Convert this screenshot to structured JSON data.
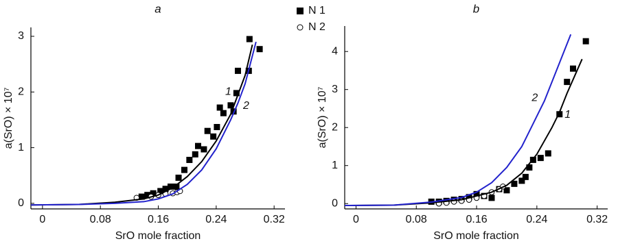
{
  "chart_data": [
    {
      "type": "scatter",
      "title": "a",
      "xlabel": "SrO mole fraction",
      "ylabel": "a(SrO) × 10⁷",
      "xlim": [
        -0.016,
        0.335
      ],
      "ylim": [
        -0.1,
        3.16
      ],
      "xticks": [
        0,
        0.08,
        0.16,
        0.24,
        0.32
      ],
      "yticks": [
        0,
        1,
        2,
        3
      ],
      "legend": "top-right",
      "series": [
        {
          "name": "N 1",
          "mark": "square",
          "color": "#000000",
          "x": [
            0.137,
            0.145,
            0.153,
            0.163,
            0.17,
            0.177,
            0.185,
            0.188,
            0.196,
            0.203,
            0.211,
            0.215,
            0.223,
            0.228,
            0.236,
            0.241,
            0.245,
            0.25,
            0.26,
            0.264,
            0.268,
            0.27,
            0.285,
            0.286,
            0.3
          ],
          "values": [
            0.12,
            0.15,
            0.18,
            0.22,
            0.26,
            0.3,
            0.3,
            0.46,
            0.6,
            0.78,
            0.88,
            1.03,
            0.97,
            1.3,
            1.2,
            1.37,
            1.72,
            1.62,
            1.76,
            1.65,
            1.98,
            2.38,
            2.38,
            2.95,
            2.77
          ]
        },
        {
          "name": "N 2",
          "mark": "circle",
          "color": "#000000",
          "x": [
            0.13,
            0.15,
            0.16,
            0.17,
            0.18,
            0.186,
            0.19
          ],
          "values": [
            0.1,
            0.12,
            0.15,
            0.17,
            0.18,
            0.2,
            0.22
          ]
        },
        {
          "name": "1",
          "mark": "line",
          "color": "#000000",
          "x": [
            -0.016,
            0.05,
            0.1,
            0.14,
            0.16,
            0.18,
            0.2,
            0.22,
            0.24,
            0.26,
            0.27,
            0.28,
            0.29
          ],
          "values": [
            -0.03,
            -0.02,
            0.02,
            0.08,
            0.15,
            0.28,
            0.48,
            0.75,
            1.12,
            1.6,
            1.95,
            2.3,
            2.85
          ]
        },
        {
          "name": "2",
          "mark": "line",
          "color": "#2222cc",
          "x": [
            -0.016,
            0.05,
            0.1,
            0.14,
            0.16,
            0.18,
            0.2,
            0.22,
            0.24,
            0.26,
            0.27,
            0.28,
            0.295
          ],
          "values": [
            -0.03,
            -0.02,
            0.0,
            0.03,
            0.08,
            0.17,
            0.34,
            0.6,
            0.98,
            1.5,
            1.8,
            2.15,
            2.9
          ]
        }
      ]
    },
    {
      "type": "scatter",
      "title": "b",
      "xlabel": "SrO mole fraction",
      "ylabel": "a(SrO) × 10⁷",
      "xlim": [
        -0.015,
        0.334
      ],
      "ylim": [
        -0.14,
        4.67
      ],
      "xticks": [
        0,
        0.08,
        0.16,
        0.24,
        0.32
      ],
      "yticks": [
        0,
        1,
        2,
        3,
        4
      ],
      "series": [
        {
          "mark": "square",
          "color": "#000000",
          "x": [
            0.1,
            0.11,
            0.12,
            0.13,
            0.14,
            0.15,
            0.16,
            0.17,
            0.18,
            0.19,
            0.2,
            0.21,
            0.22,
            0.225,
            0.23,
            0.235,
            0.245,
            0.255,
            0.27,
            0.28,
            0.288,
            0.305
          ],
          "values": [
            0.05,
            0.05,
            0.07,
            0.1,
            0.12,
            0.17,
            0.25,
            0.2,
            0.15,
            0.38,
            0.35,
            0.52,
            0.6,
            0.7,
            0.95,
            1.15,
            1.2,
            1.32,
            2.35,
            3.2,
            3.55,
            4.27
          ]
        },
        {
          "mark": "circle",
          "color": "#000000",
          "x": [
            0.11,
            0.12,
            0.13,
            0.14,
            0.15,
            0.16,
            0.17,
            0.18,
            0.19,
            0.195
          ],
          "values": [
            0.0,
            0.02,
            0.05,
            0.07,
            0.1,
            0.15,
            0.2,
            0.3,
            0.38,
            0.45
          ]
        },
        {
          "name": "1",
          "mark": "line",
          "color": "#000000",
          "x": [
            -0.015,
            0.05,
            0.1,
            0.14,
            0.18,
            0.2,
            0.22,
            0.24,
            0.26,
            0.27,
            0.28,
            0.3
          ],
          "values": [
            -0.05,
            -0.04,
            0.02,
            0.1,
            0.3,
            0.48,
            0.8,
            1.3,
            2.0,
            2.4,
            2.9,
            3.8
          ]
        },
        {
          "name": "2",
          "mark": "line",
          "color": "#2222cc",
          "x": [
            -0.015,
            0.05,
            0.1,
            0.14,
            0.16,
            0.18,
            0.2,
            0.22,
            0.24,
            0.25,
            0.26,
            0.285
          ],
          "values": [
            -0.05,
            -0.04,
            0.04,
            0.16,
            0.3,
            0.55,
            0.95,
            1.5,
            2.3,
            2.7,
            3.2,
            4.45
          ]
        }
      ]
    }
  ]
}
